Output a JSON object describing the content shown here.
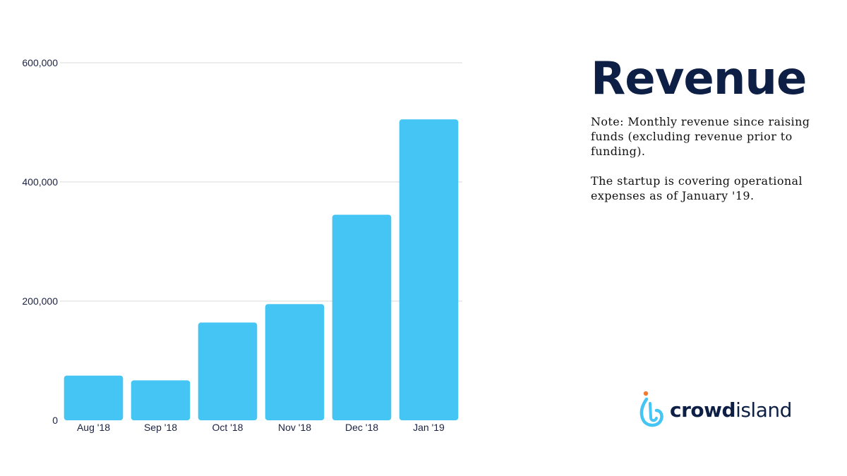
{
  "title": "Revenue",
  "note_paragraphs": [
    "Note: Monthly revenue since raising funds (excluding revenue prior to funding).",
    "The startup is covering operational expenses as of January '19."
  ],
  "brand": {
    "bold": "crowd",
    "regular": "island",
    "icon": "drop-hook-logo-icon"
  },
  "colors": {
    "bar": "#45c5f3",
    "title": "#0d1f45",
    "grid": "#d9d9d9",
    "brand_dot": "#f07a2f"
  },
  "chart_data": {
    "type": "bar",
    "categories": [
      "Aug '18",
      "Sep '18",
      "Oct '18",
      "Nov '18",
      "Dec '18",
      "Jan '19"
    ],
    "values": [
      75000,
      67000,
      164000,
      195000,
      345000,
      505000
    ],
    "ylim": [
      0,
      600000
    ],
    "yticks": [
      0,
      200000,
      400000,
      600000
    ],
    "ytick_labels": [
      "0",
      "200,000",
      "400,000",
      "600,000"
    ],
    "grid": true,
    "xlabel": "",
    "ylabel": ""
  }
}
